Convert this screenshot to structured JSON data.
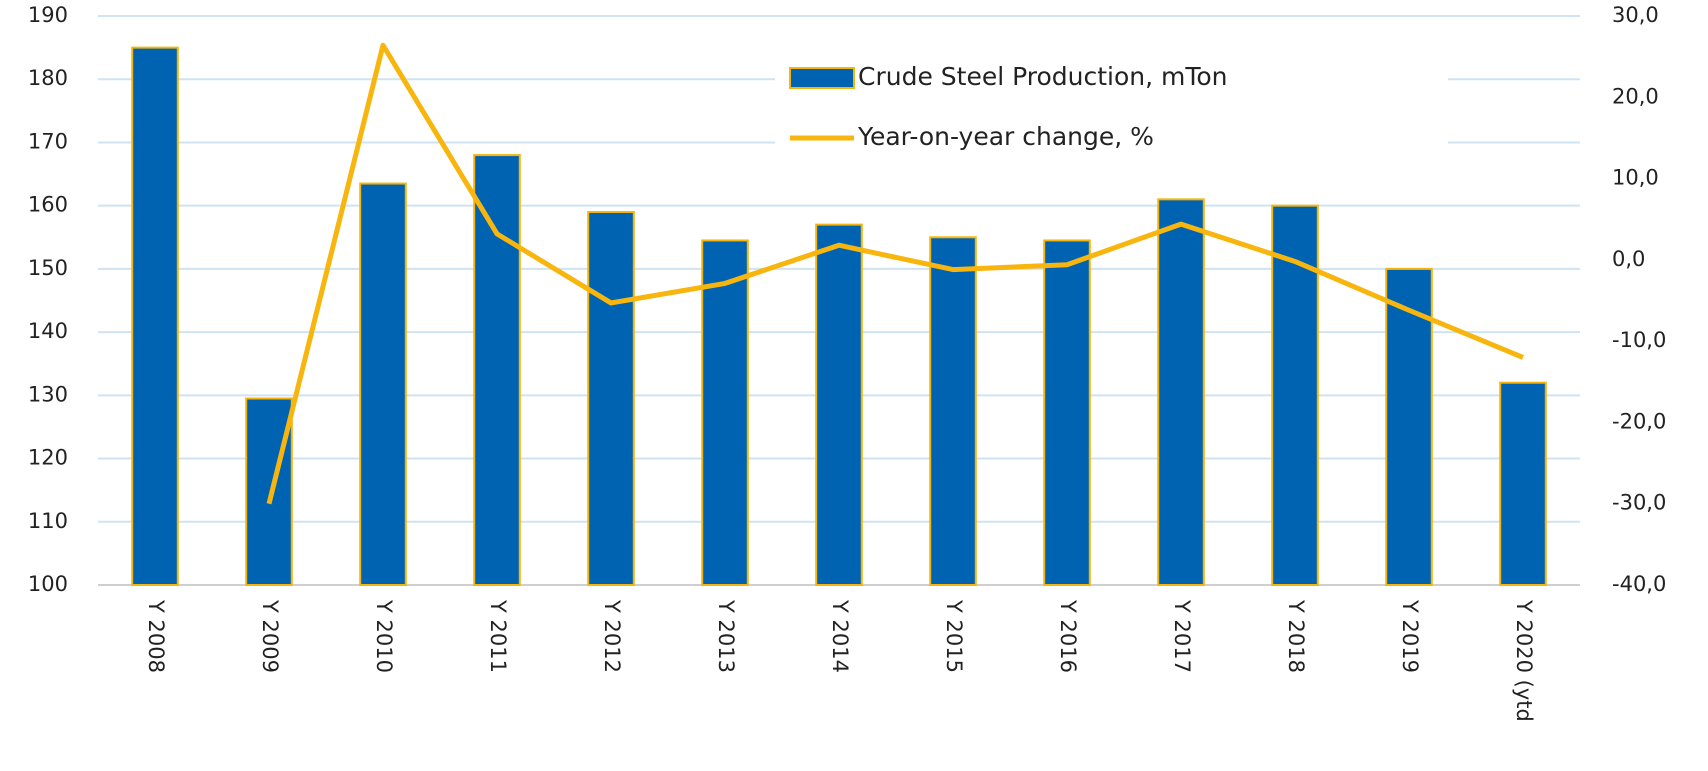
{
  "chart_data": {
    "type": "bar-line",
    "categories": [
      "Y 2008",
      "Y 2009",
      "Y 2010",
      "Y 2011",
      "Y 2012",
      "Y 2013",
      "Y 2014",
      "Y 2015",
      "Y 2016",
      "Y 2017",
      "Y 2018",
      "Y 2019",
      "Y 2020 (ytd"
    ],
    "series": [
      {
        "name": "Crude Steel Production, mTon",
        "type": "bar",
        "color": "#0063b1",
        "edge_color": "#f5b50a",
        "values": [
          185,
          129.5,
          163.5,
          168,
          159,
          154.5,
          157,
          155,
          154.5,
          161,
          160,
          150,
          132
        ]
      },
      {
        "name": "Year-on-year change, %",
        "type": "line",
        "axis": "y2",
        "color": "#f8b50d",
        "values": [
          null,
          -30,
          26.4,
          3.2,
          -5.3,
          -2.9,
          1.8,
          -1.2,
          -0.6,
          4.4,
          -0.2,
          -6.2,
          -12
        ]
      }
    ],
    "ylim": [
      100,
      190
    ],
    "yticks": [
      100,
      110,
      120,
      130,
      140,
      150,
      160,
      170,
      180,
      190
    ],
    "y2lim": [
      -40,
      30
    ],
    "y2ticks": [
      {
        "value": -40,
        "label": "-40,0"
      },
      {
        "value": -30,
        "label": "-30,0"
      },
      {
        "value": -20,
        "label": "-20,0"
      },
      {
        "value": -10,
        "label": "-10,0"
      },
      {
        "value": 0,
        "label": "0,0"
      },
      {
        "value": 10,
        "label": "10,0"
      },
      {
        "value": 20,
        "label": "20,0"
      },
      {
        "value": 30,
        "label": "30,0"
      }
    ],
    "grid": true,
    "grid_color": "#cfe3f2"
  }
}
